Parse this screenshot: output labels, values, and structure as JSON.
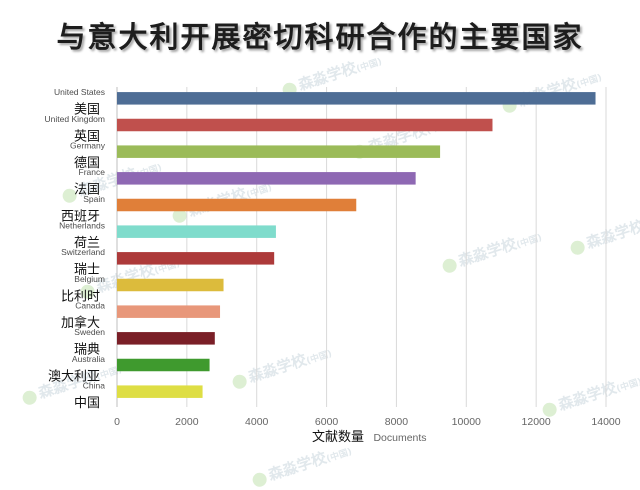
{
  "title": "与意大利开展密切科研合作的主要国家",
  "watermark": {
    "text": "森淼学校",
    "suffix": "(中国)"
  },
  "colors": {
    "grid": "#d9d9d9",
    "axis_text": "#666666",
    "label_text": "#4d4d4d"
  },
  "chart_data": {
    "type": "bar",
    "orientation": "horizontal",
    "categories": [
      "United States",
      "United Kingdom",
      "Germany",
      "France",
      "Spain",
      "Netherlands",
      "Switzerland",
      "Belgium",
      "Canada",
      "Sweden",
      "Australia",
      "China"
    ],
    "categories_cn": [
      "美国",
      "英国",
      "德国",
      "法国",
      "西班牙",
      "荷兰",
      "瑞士",
      "比利时",
      "加拿大",
      "瑞典",
      "澳大利亚",
      "中国"
    ],
    "values": [
      13700,
      10750,
      9250,
      8550,
      6850,
      4550,
      4500,
      3050,
      2950,
      2800,
      2650,
      2450
    ],
    "bar_colors": [
      "#4e6d95",
      "#c0504d",
      "#9bbb59",
      "#8e68b3",
      "#e07f39",
      "#7fdccc",
      "#ad3a3a",
      "#dcbb3c",
      "#e8977a",
      "#7a1f27",
      "#3f9a2e",
      "#dede44"
    ],
    "xlim": [
      0,
      14000
    ],
    "xticks": [
      0,
      2000,
      4000,
      6000,
      8000,
      10000,
      12000,
      14000
    ],
    "xlabel": "Documents",
    "xlabel_cn": "文献数量",
    "grid": true,
    "legend": "none"
  }
}
